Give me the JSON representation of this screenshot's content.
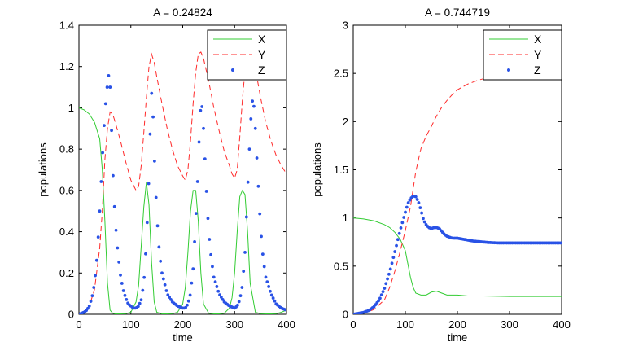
{
  "chart_data": [
    {
      "type": "line",
      "title": "A = 0.24824",
      "xlabel": "time",
      "ylabel": "populations",
      "xlim": [
        0,
        400
      ],
      "ylim": [
        0,
        1.4
      ],
      "xticks": [
        "0",
        "100",
        "200",
        "300",
        "400"
      ],
      "yticks": [
        "0",
        "0.2",
        "0.4",
        "0.6",
        "0.8",
        "1",
        "1.2",
        "1.4"
      ],
      "legend": {
        "location": "top-right",
        "entries": [
          "X",
          "Y",
          "Z"
        ]
      },
      "series": [
        {
          "name": "X",
          "style": "solid",
          "color": "#33cc33",
          "x": [
            0,
            10,
            20,
            30,
            40,
            45,
            50,
            55,
            60,
            65,
            70,
            80,
            90,
            100,
            110,
            115,
            120,
            125,
            130,
            135,
            140,
            145,
            150,
            160,
            170,
            180,
            190,
            200,
            205,
            210,
            215,
            220,
            225,
            230,
            235,
            240,
            250,
            260,
            270,
            280,
            290,
            295,
            300,
            305,
            310,
            315,
            320,
            325,
            330,
            340,
            350,
            360,
            370,
            380,
            390,
            400
          ],
          "values": [
            1.0,
            0.99,
            0.97,
            0.93,
            0.85,
            0.7,
            0.45,
            0.15,
            0.02,
            0.005,
            0.002,
            0.002,
            0.003,
            0.01,
            0.06,
            0.14,
            0.33,
            0.52,
            0.64,
            0.53,
            0.25,
            0.06,
            0.01,
            0.002,
            0.002,
            0.003,
            0.01,
            0.05,
            0.13,
            0.3,
            0.5,
            0.6,
            0.6,
            0.45,
            0.2,
            0.05,
            0.005,
            0.002,
            0.002,
            0.005,
            0.03,
            0.08,
            0.2,
            0.4,
            0.57,
            0.6,
            0.58,
            0.4,
            0.15,
            0.01,
            0.003,
            0.002,
            0.002,
            0.003,
            0.01,
            0.02
          ]
        },
        {
          "name": "Y",
          "style": "dashed",
          "color": "#ff2a2a",
          "x": [
            0,
            10,
            20,
            30,
            40,
            45,
            50,
            55,
            60,
            65,
            70,
            80,
            90,
            100,
            110,
            115,
            120,
            125,
            130,
            135,
            140,
            145,
            150,
            160,
            170,
            180,
            190,
            200,
            205,
            210,
            215,
            220,
            225,
            230,
            235,
            240,
            250,
            260,
            270,
            280,
            290,
            295,
            300,
            305,
            310,
            315,
            320,
            325,
            330,
            340,
            350,
            360,
            370,
            380,
            390,
            400
          ],
          "values": [
            0.0,
            0.01,
            0.04,
            0.12,
            0.32,
            0.5,
            0.75,
            0.9,
            0.98,
            0.97,
            0.93,
            0.84,
            0.74,
            0.65,
            0.6,
            0.62,
            0.72,
            0.88,
            1.05,
            1.2,
            1.26,
            1.22,
            1.15,
            1.02,
            0.9,
            0.8,
            0.72,
            0.67,
            0.65,
            0.7,
            0.84,
            1.02,
            1.17,
            1.26,
            1.27,
            1.24,
            1.13,
            1.0,
            0.89,
            0.79,
            0.72,
            0.68,
            0.66,
            0.7,
            0.86,
            1.04,
            1.18,
            1.25,
            1.26,
            1.19,
            1.05,
            0.93,
            0.84,
            0.77,
            0.72,
            0.68
          ]
        },
        {
          "name": "Z",
          "style": "dots",
          "color": "#2952e6",
          "x": [
            0,
            5,
            10,
            15,
            20,
            25,
            30,
            35,
            40,
            45,
            50,
            55,
            58,
            60,
            63,
            66,
            70,
            75,
            80,
            85,
            90,
            95,
            100,
            105,
            110,
            115,
            120,
            125,
            130,
            135,
            138,
            140,
            143,
            146,
            150,
            155,
            160,
            170,
            180,
            190,
            200,
            205,
            210,
            215,
            220,
            225,
            230,
            232,
            235,
            238,
            242,
            246,
            250,
            255,
            260,
            270,
            280,
            290,
            300,
            305,
            310,
            315,
            320,
            325,
            330,
            333,
            336,
            340,
            344,
            350,
            355,
            360,
            370,
            380,
            390,
            400
          ],
          "values": [
            0.0,
            0.005,
            0.01,
            0.02,
            0.04,
            0.08,
            0.15,
            0.28,
            0.5,
            0.75,
            0.98,
            1.12,
            1.17,
            1.1,
            0.88,
            0.65,
            0.45,
            0.3,
            0.19,
            0.12,
            0.08,
            0.05,
            0.04,
            0.03,
            0.03,
            0.04,
            0.07,
            0.15,
            0.35,
            0.68,
            0.95,
            1.07,
            0.95,
            0.72,
            0.48,
            0.3,
            0.2,
            0.1,
            0.06,
            0.04,
            0.03,
            0.03,
            0.05,
            0.1,
            0.22,
            0.45,
            0.72,
            0.88,
            1.02,
            1.0,
            0.8,
            0.58,
            0.4,
            0.27,
            0.18,
            0.1,
            0.06,
            0.04,
            0.03,
            0.04,
            0.07,
            0.14,
            0.3,
            0.6,
            0.88,
            1.02,
            1.05,
            0.9,
            0.7,
            0.42,
            0.27,
            0.18,
            0.1,
            0.05,
            0.03,
            0.02
          ]
        }
      ]
    },
    {
      "type": "line",
      "title": "A = 0.744719",
      "xlabel": "time",
      "ylabel": "populations",
      "xlim": [
        0,
        400
      ],
      "ylim": [
        0,
        3
      ],
      "xticks": [
        "0",
        "100",
        "200",
        "300",
        "400"
      ],
      "yticks": [
        "0",
        "0.5",
        "1",
        "1.5",
        "2",
        "2.5",
        "3"
      ],
      "legend": {
        "location": "top-right",
        "entries": [
          "X",
          "Y",
          "Z"
        ]
      },
      "series": [
        {
          "name": "X",
          "style": "solid",
          "color": "#33cc33",
          "x": [
            0,
            20,
            40,
            60,
            70,
            80,
            90,
            100,
            105,
            110,
            115,
            120,
            130,
            140,
            150,
            160,
            170,
            180,
            200,
            220,
            250,
            300,
            350,
            400
          ],
          "values": [
            1.0,
            0.99,
            0.97,
            0.93,
            0.9,
            0.85,
            0.78,
            0.66,
            0.52,
            0.38,
            0.28,
            0.22,
            0.2,
            0.2,
            0.23,
            0.24,
            0.22,
            0.2,
            0.2,
            0.19,
            0.19,
            0.185,
            0.185,
            0.185
          ]
        },
        {
          "name": "Y",
          "style": "dashed",
          "color": "#ff2a2a",
          "x": [
            0,
            20,
            40,
            60,
            70,
            80,
            90,
            100,
            110,
            115,
            120,
            130,
            140,
            150,
            160,
            170,
            180,
            190,
            200,
            220,
            240,
            260,
            280,
            300,
            340,
            400
          ],
          "values": [
            0.0,
            0.01,
            0.05,
            0.15,
            0.28,
            0.45,
            0.65,
            0.87,
            1.12,
            1.3,
            1.48,
            1.72,
            1.85,
            1.95,
            2.06,
            2.15,
            2.22,
            2.28,
            2.33,
            2.39,
            2.43,
            2.46,
            2.48,
            2.49,
            2.5,
            2.5
          ]
        },
        {
          "name": "Z",
          "style": "dots",
          "color": "#2952e6",
          "x": [
            0,
            10,
            20,
            30,
            40,
            50,
            60,
            70,
            80,
            90,
            100,
            105,
            110,
            115,
            120,
            125,
            130,
            135,
            140,
            145,
            150,
            155,
            160,
            165,
            170,
            175,
            180,
            185,
            190,
            200,
            210,
            220,
            230,
            240,
            250,
            260,
            280,
            300,
            320,
            340,
            360,
            380,
            400
          ],
          "values": [
            0.0,
            0.01,
            0.02,
            0.04,
            0.08,
            0.15,
            0.27,
            0.44,
            0.65,
            0.87,
            1.06,
            1.15,
            1.2,
            1.23,
            1.22,
            1.17,
            1.08,
            0.98,
            0.93,
            0.9,
            0.89,
            0.9,
            0.9,
            0.89,
            0.86,
            0.83,
            0.81,
            0.8,
            0.79,
            0.79,
            0.78,
            0.77,
            0.76,
            0.755,
            0.75,
            0.745,
            0.74,
            0.74,
            0.74,
            0.74,
            0.74,
            0.74,
            0.74
          ]
        }
      ]
    }
  ]
}
